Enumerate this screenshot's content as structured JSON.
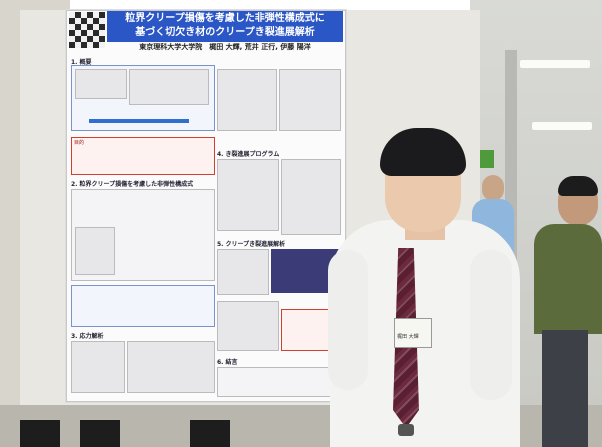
{
  "poster": {
    "title_line1": "粒界クリープ損傷を考慮した非弾性構成式に",
    "title_line2": "基づく切欠き材のクリープき裂進展解析",
    "authors": "東京理科大学大学院　梶田 大輝, 荒井 正行, 伊藤 陽洋",
    "section1": "1. 概要",
    "section2": "2. 粒界クリープ損傷を考慮した非弾性構成式",
    "section3": "3. 応力解析",
    "section4": "4. き裂進展プログラム",
    "section5": "5. クリープき裂進展解析",
    "section6": "6. 結言",
    "box_label": "目的"
  },
  "badge_text": "梶田 大輝",
  "colors": {
    "poster_header": "#2a56c6",
    "shirt": "#f3f3f1",
    "tie": "#5a1f32",
    "hair": "#1b1b1d"
  }
}
